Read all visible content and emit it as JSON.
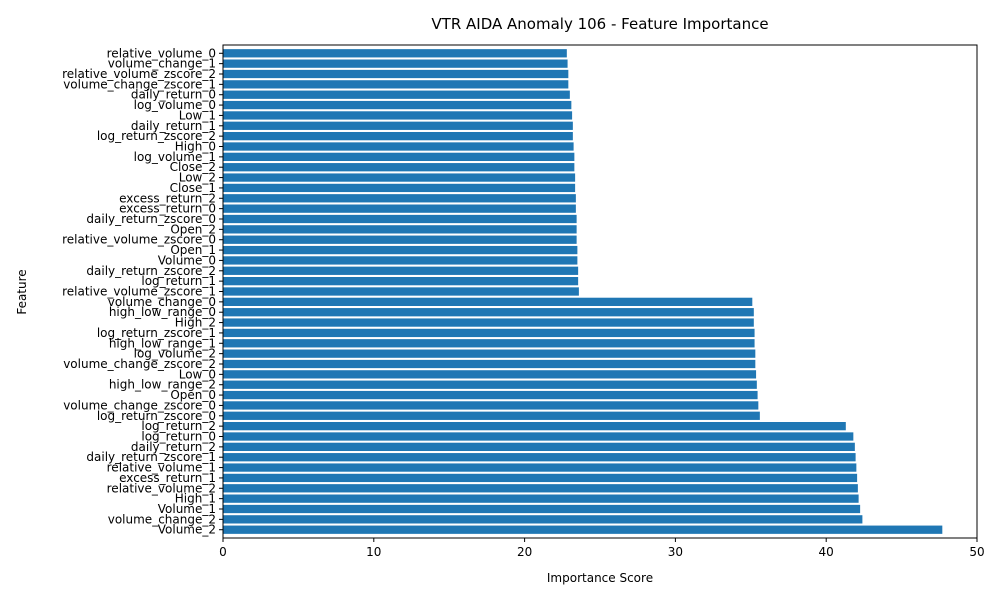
{
  "chart_data": {
    "type": "bar",
    "orientation": "horizontal",
    "title": "VTR AIDA Anomaly 106 - Feature Importance",
    "xlabel": "Importance Score",
    "ylabel": "Feature",
    "xlim": [
      0,
      50
    ],
    "xticks": [
      "0",
      "10",
      "20",
      "30",
      "40",
      "50"
    ],
    "bar_color": "#1f77b4",
    "grid": false,
    "categories": [
      "relative_volume_0",
      "volume_change_1",
      "relative_volume_zscore_2",
      "volume_change_zscore_1",
      "daily_return_0",
      "log_volume_0",
      "Low_1",
      "daily_return_1",
      "log_return_zscore_2",
      "High_0",
      "log_volume_1",
      "Close_2",
      "Low_2",
      "Close_1",
      "excess_return_2",
      "excess_return_0",
      "daily_return_zscore_0",
      "Open_2",
      "relative_volume_zscore_0",
      "Open_1",
      "Volume_0",
      "daily_return_zscore_2",
      "log_return_1",
      "relative_volume_zscore_1",
      "volume_change_0",
      "high_low_range_0",
      "High_2",
      "log_return_zscore_1",
      "high_low_range_1",
      "log_volume_2",
      "volume_change_zscore_2",
      "Low_0",
      "high_low_range_2",
      "Open_0",
      "volume_change_zscore_0",
      "log_return_zscore_0",
      "log_return_2",
      "log_return_0",
      "daily_return_2",
      "daily_return_zscore_1",
      "relative_volume_1",
      "excess_return_1",
      "relative_volume_2",
      "High_1",
      "Volume_1",
      "volume_change_2",
      "Volume_2"
    ],
    "values": [
      22.8,
      22.85,
      22.9,
      22.9,
      23.0,
      23.1,
      23.15,
      23.2,
      23.2,
      23.25,
      23.3,
      23.3,
      23.35,
      23.35,
      23.4,
      23.4,
      23.45,
      23.45,
      23.45,
      23.5,
      23.5,
      23.55,
      23.55,
      23.6,
      35.1,
      35.2,
      35.2,
      35.25,
      35.25,
      35.3,
      35.3,
      35.35,
      35.4,
      35.45,
      35.5,
      35.6,
      41.3,
      41.8,
      41.9,
      41.95,
      42.0,
      42.05,
      42.1,
      42.15,
      42.25,
      42.4,
      47.7
    ]
  }
}
